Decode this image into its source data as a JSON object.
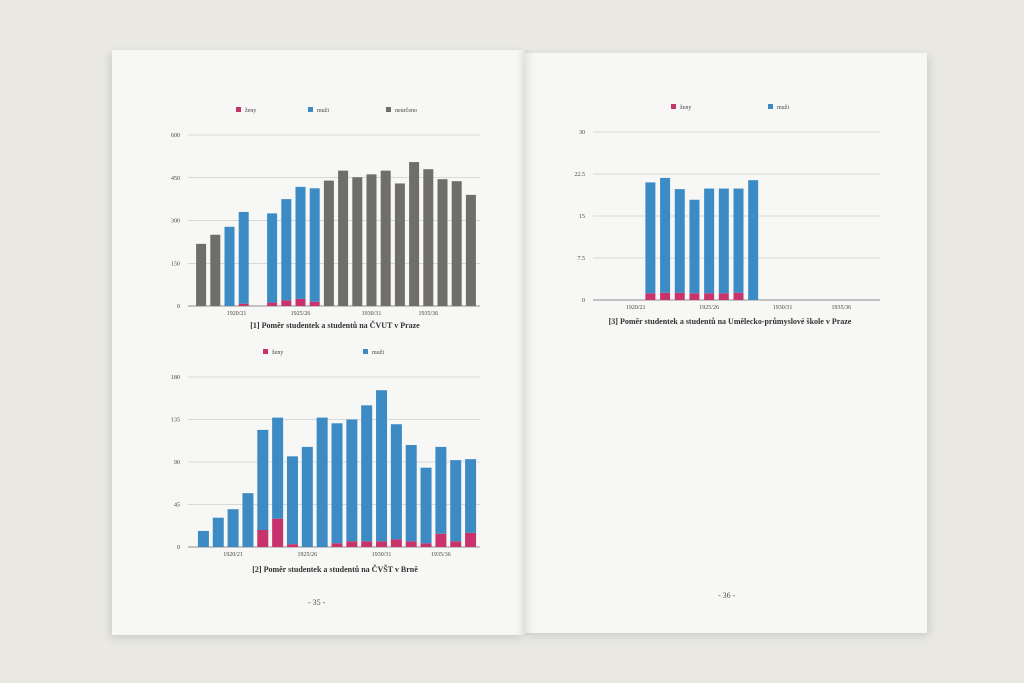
{
  "colors": {
    "zeny": "#c8336b",
    "muzi": "#3d8bc4",
    "neurceno": "#6f6e6b",
    "grid": "#b9b9b9",
    "axis": "#8e8e8e"
  },
  "left_page": {
    "page_number": "- 35 -",
    "chart1_caption": "[1] Poměr studentek a studentů na ČVUT v Praze",
    "chart2_caption": "[2] Poměr studentek a studentů na ČVŠT v Brně"
  },
  "right_page": {
    "page_number": "- 36 -",
    "chart3_caption": "[3] Poměr studentek a studentů na Umělecko-průmyslové škole v Praze"
  },
  "chart_data": [
    {
      "type": "bar",
      "stacked": true,
      "title": "[1] Poměr studentek a studentů na ČVUT v Praze",
      "xlabel": "",
      "ylabel": "",
      "ylim": [
        0,
        600
      ],
      "yticks": [
        "0",
        "150",
        "300",
        "450",
        "600"
      ],
      "x_tick_labels": [
        {
          "label": "1920/21",
          "index": 2.5
        },
        {
          "label": "1925/26",
          "index": 7
        },
        {
          "label": "1930/31",
          "index": 12
        },
        {
          "label": "1935/36",
          "index": 16
        }
      ],
      "legend_position": "top",
      "grid": true,
      "categories": [
        "",
        "",
        "",
        "",
        "",
        "",
        "",
        "",
        "",
        "",
        "",
        "",
        "",
        "",
        "",
        "",
        "",
        "",
        "",
        ""
      ],
      "series": [
        {
          "name": "ženy",
          "color": "#c8336b",
          "values": [
            0,
            0,
            0,
            8,
            0,
            12,
            20,
            25,
            15,
            0,
            0,
            0,
            0,
            0,
            0,
            0,
            0,
            0,
            0,
            0
          ]
        },
        {
          "name": "muži",
          "color": "#3d8bc4",
          "values": [
            0,
            0,
            278,
            322,
            0,
            313,
            355,
            393,
            398,
            0,
            0,
            0,
            0,
            0,
            0,
            0,
            0,
            0,
            0,
            0
          ]
        },
        {
          "name": "neurčeno",
          "color": "#6f6e6b",
          "values": [
            218,
            250,
            0,
            0,
            0,
            0,
            0,
            0,
            0,
            440,
            475,
            452,
            462,
            475,
            430,
            505,
            480,
            445,
            438,
            390
          ]
        }
      ]
    },
    {
      "type": "bar",
      "stacked": true,
      "title": "[2] Poměr studentek a studentů na ČVŠT v Brně",
      "xlabel": "",
      "ylabel": "",
      "ylim": [
        0,
        180
      ],
      "yticks": [
        "0",
        "45",
        "90",
        "135",
        "180"
      ],
      "x_tick_labels": [
        {
          "label": "1920/21",
          "index": 2
        },
        {
          "label": "1925/26",
          "index": 7
        },
        {
          "label": "1930/31",
          "index": 12
        },
        {
          "label": "1935/36",
          "index": 16
        }
      ],
      "legend_position": "top",
      "grid": true,
      "categories": [
        "",
        "",
        "",
        "",
        "",
        "",
        "",
        "",
        "",
        "",
        "",
        "",
        "",
        "",
        "",
        "",
        "",
        "",
        ""
      ],
      "series": [
        {
          "name": "ženy",
          "color": "#c8336b",
          "values": [
            0,
            0,
            0,
            0,
            18,
            30,
            3,
            0,
            0,
            4,
            6,
            6,
            6,
            8,
            6,
            4,
            14,
            6,
            15
          ]
        },
        {
          "name": "muži",
          "color": "#3d8bc4",
          "values": [
            17,
            31,
            40,
            57,
            106,
            107,
            93,
            106,
            137,
            127,
            129,
            144,
            160,
            122,
            102,
            80,
            92,
            86,
            78
          ]
        }
      ]
    },
    {
      "type": "bar",
      "stacked": true,
      "title": "[3] Poměr studentek a studentů na Umělecko-průmyslové škole v Praze",
      "xlabel": "",
      "ylabel": "",
      "ylim": [
        0,
        30
      ],
      "yticks": [
        "0",
        "7.5",
        "15",
        "22.5",
        "30"
      ],
      "x_tick_labels": [
        {
          "label": "1920/21",
          "index": 2
        },
        {
          "label": "1925/26",
          "index": 7
        },
        {
          "label": "1930/31",
          "index": 12
        },
        {
          "label": "1935/36",
          "index": 16
        }
      ],
      "legend_position": "top",
      "grid": true,
      "categories": [
        "",
        "",
        "",
        "",
        "",
        "",
        "",
        "",
        "",
        "",
        "",
        "",
        "",
        "",
        "",
        "",
        "",
        "",
        ""
      ],
      "series": [
        {
          "name": "ženy",
          "color": "#c8336b",
          "values": [
            0,
            0,
            0,
            1.2,
            1.3,
            1.3,
            1.2,
            1.2,
            1.2,
            1.3,
            0,
            0,
            0,
            0,
            0,
            0,
            0,
            0,
            0
          ]
        },
        {
          "name": "muži",
          "color": "#3d8bc4",
          "values": [
            0,
            0,
            0,
            19.8,
            20.5,
            18.5,
            16.7,
            18.7,
            18.7,
            18.6,
            21.4,
            0,
            0,
            0,
            0,
            0,
            0,
            0,
            0
          ]
        }
      ]
    }
  ]
}
